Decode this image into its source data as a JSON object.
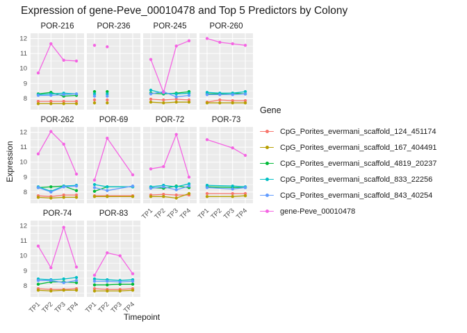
{
  "title": "Expression of gene-Peve_00010478 and Top 5 Predictors by Colony",
  "axes": {
    "x_title": "Timepoint",
    "y_title": "Expression"
  },
  "legend": {
    "title": "Gene",
    "items": [
      {
        "label": "CpG_Porites_evermani_scaffold_124_451174",
        "color": "#F8766D"
      },
      {
        "label": "CpG_Porites_evermani_scaffold_167_404491",
        "color": "#B79F00"
      },
      {
        "label": "CpG_Porites_evermani_scaffold_4819_20237",
        "color": "#00BA38"
      },
      {
        "label": "CpG_Porites_evermani_scaffold_833_22256",
        "color": "#00BFC4"
      },
      {
        "label": "CpG_Porites_evermani_scaffold_843_40254",
        "color": "#619CFF"
      },
      {
        "label": "gene-Peve_00010478",
        "color": "#F564E3"
      }
    ]
  },
  "chart_data": {
    "type": "line",
    "facet_by": "Colony",
    "title": "Expression of gene-Peve_00010478 and Top 5 Predictors by Colony",
    "xlabel": "Timepoint",
    "ylabel": "Expression",
    "x_categories": [
      "TP1",
      "TP2",
      "TP3",
      "TP4"
    ],
    "yticks": [
      8,
      9,
      10,
      11,
      12
    ],
    "y_minor": [
      7.5,
      8.5,
      9.5,
      10.5,
      11.5
    ],
    "ylim": [
      7.25,
      12.35
    ],
    "grid": "on",
    "legend_position": "right",
    "series_order": [
      "CpG_Porites_evermani_scaffold_124_451174",
      "CpG_Porites_evermani_scaffold_167_404491",
      "CpG_Porites_evermani_scaffold_4819_20237",
      "CpG_Porites_evermani_scaffold_833_22256",
      "CpG_Porites_evermani_scaffold_843_40254",
      "gene-Peve_00010478"
    ],
    "facets": [
      {
        "colony": "POR-216",
        "row": 0,
        "col": 0,
        "show_y": true,
        "show_x": false,
        "x_idx": [
          0,
          1,
          2,
          3
        ],
        "series": [
          [
            7.8,
            7.8,
            7.8,
            7.8
          ],
          [
            7.65,
            7.65,
            7.65,
            7.65
          ],
          [
            8.3,
            8.4,
            8.15,
            8.2
          ],
          [
            8.25,
            8.3,
            8.35,
            8.3
          ],
          [
            8.2,
            8.2,
            8.25,
            8.3
          ],
          [
            9.7,
            11.65,
            10.55,
            10.5
          ]
        ]
      },
      {
        "colony": "POR-236",
        "row": 0,
        "col": 1,
        "show_y": false,
        "show_x": false,
        "x_idx": [
          0,
          1
        ],
        "lines": false,
        "series": [
          [
            7.9,
            7.9
          ],
          [
            7.7,
            7.7
          ],
          [
            8.45,
            8.45
          ],
          [
            8.3,
            8.3
          ],
          [
            8.15,
            8.15
          ],
          [
            11.55,
            11.45
          ]
        ]
      },
      {
        "colony": "POR-245",
        "row": 0,
        "col": 2,
        "show_y": false,
        "show_x": false,
        "x_idx": [
          0,
          1,
          2,
          3
        ],
        "series": [
          [
            7.95,
            7.9,
            7.95,
            7.9
          ],
          [
            7.75,
            7.7,
            7.75,
            7.75
          ],
          [
            8.35,
            8.3,
            8.35,
            8.45
          ],
          [
            8.55,
            8.35,
            8.3,
            8.35
          ],
          [
            8.3,
            8.45,
            8.1,
            8.2
          ],
          [
            10.6,
            8.4,
            11.5,
            11.85
          ]
        ]
      },
      {
        "colony": "POR-260",
        "row": 0,
        "col": 3,
        "show_y": false,
        "show_x": false,
        "x_idx": [
          0,
          1,
          2,
          3
        ],
        "series": [
          [
            7.75,
            7.9,
            7.85,
            7.85
          ],
          [
            7.7,
            7.7,
            7.7,
            7.7
          ],
          [
            8.3,
            8.3,
            8.35,
            8.3
          ],
          [
            8.4,
            8.35,
            8.35,
            8.45
          ],
          [
            8.25,
            8.25,
            8.25,
            8.3
          ],
          [
            12.0,
            11.75,
            11.65,
            11.55
          ]
        ]
      },
      {
        "colony": "POR-262",
        "row": 1,
        "col": 0,
        "show_y": true,
        "show_x": false,
        "x_idx": [
          0,
          1,
          2,
          3
        ],
        "series": [
          [
            7.75,
            7.7,
            7.8,
            7.8
          ],
          [
            7.65,
            7.6,
            7.65,
            7.65
          ],
          [
            8.3,
            8.35,
            8.4,
            8.1
          ],
          [
            8.35,
            8.05,
            8.4,
            8.45
          ],
          [
            8.3,
            8.0,
            8.35,
            8.4
          ],
          [
            10.55,
            12.05,
            11.2,
            9.2
          ]
        ]
      },
      {
        "colony": "POR-69",
        "row": 1,
        "col": 1,
        "show_y": false,
        "show_x": false,
        "x_idx": [
          0,
          1,
          3
        ],
        "series": [
          [
            7.75,
            7.75,
            7.75
          ],
          [
            7.7,
            7.7,
            7.7
          ],
          [
            8.05,
            8.35,
            8.35
          ],
          [
            8.5,
            8.35,
            8.35
          ],
          [
            8.3,
            8.1,
            8.4
          ],
          [
            8.8,
            11.6,
            9.15
          ]
        ]
      },
      {
        "colony": "POR-72",
        "row": 1,
        "col": 2,
        "show_y": false,
        "show_x": true,
        "x_idx": [
          0,
          1,
          2,
          3
        ],
        "series": [
          [
            7.8,
            7.85,
            7.8,
            7.8
          ],
          [
            7.7,
            7.7,
            7.6,
            7.9
          ],
          [
            8.3,
            8.25,
            8.4,
            8.3
          ],
          [
            8.35,
            8.45,
            8.35,
            8.55
          ],
          [
            8.25,
            8.35,
            8.15,
            8.4
          ],
          [
            9.55,
            9.7,
            11.85,
            9.0
          ]
        ]
      },
      {
        "colony": "POR-73",
        "row": 1,
        "col": 3,
        "show_y": false,
        "show_x": true,
        "x_idx": [
          0,
          2,
          3
        ],
        "series": [
          [
            7.9,
            7.9,
            7.9
          ],
          [
            7.7,
            7.7,
            7.75
          ],
          [
            8.35,
            8.3,
            8.3
          ],
          [
            8.45,
            8.4,
            8.35
          ],
          [
            8.3,
            8.2,
            8.3
          ],
          [
            11.5,
            10.95,
            10.45
          ]
        ]
      },
      {
        "colony": "POR-74",
        "row": 2,
        "col": 0,
        "show_y": true,
        "show_x": true,
        "x_idx": [
          0,
          1,
          2,
          3
        ],
        "series": [
          [
            7.8,
            7.75,
            7.75,
            7.8
          ],
          [
            7.7,
            7.65,
            7.7,
            7.7
          ],
          [
            8.1,
            8.25,
            8.25,
            8.2
          ],
          [
            8.45,
            8.4,
            8.45,
            8.55
          ],
          [
            8.35,
            8.35,
            8.2,
            8.35
          ],
          [
            10.65,
            9.2,
            11.9,
            9.25
          ]
        ]
      },
      {
        "colony": "POR-83",
        "row": 2,
        "col": 1,
        "show_y": false,
        "show_x": true,
        "x_idx": [
          0,
          1,
          2,
          3
        ],
        "series": [
          [
            7.8,
            7.75,
            7.75,
            7.8
          ],
          [
            7.65,
            7.65,
            7.65,
            7.7
          ],
          [
            8.05,
            8.05,
            8.1,
            8.1
          ],
          [
            8.45,
            8.4,
            8.35,
            8.4
          ],
          [
            8.3,
            8.3,
            8.25,
            8.3
          ],
          [
            8.7,
            10.2,
            10.0,
            8.8
          ]
        ]
      }
    ]
  }
}
